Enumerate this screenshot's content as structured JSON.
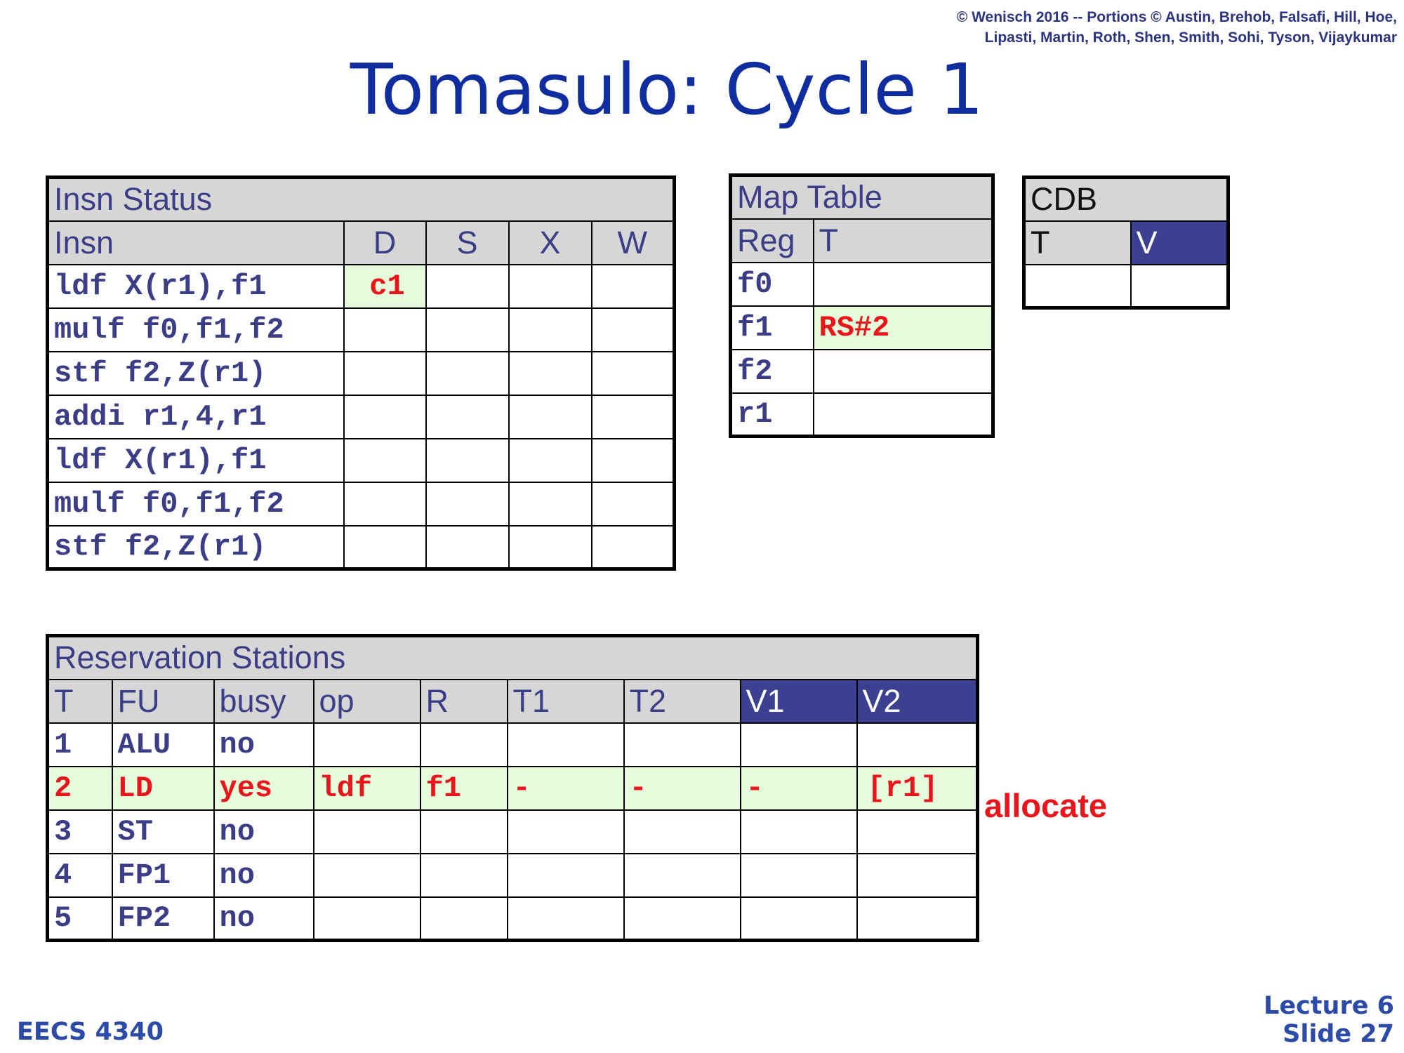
{
  "header": {
    "copyright_line1": "© Wenisch 2016 -- Portions © Austin, Brehob, Falsafi, Hill, Hoe,",
    "copyright_line2": "Lipasti, Martin, Roth, Shen, Smith, Sohi, Tyson, Vijaykumar",
    "title": "Tomasulo: Cycle 1"
  },
  "insn_status": {
    "title": "Insn Status",
    "columns": [
      "Insn",
      "D",
      "S",
      "X",
      "W"
    ],
    "rows": [
      {
        "insn": "ldf X(r1),f1",
        "d": "c1",
        "s": "",
        "x": "",
        "w": ""
      },
      {
        "insn": "mulf f0,f1,f2",
        "d": "",
        "s": "",
        "x": "",
        "w": ""
      },
      {
        "insn": "stf f2,Z(r1)",
        "d": "",
        "s": "",
        "x": "",
        "w": ""
      },
      {
        "insn": "addi r1,4,r1",
        "d": "",
        "s": "",
        "x": "",
        "w": ""
      },
      {
        "insn": "ldf X(r1),f1",
        "d": "",
        "s": "",
        "x": "",
        "w": ""
      },
      {
        "insn": "mulf f0,f1,f2",
        "d": "",
        "s": "",
        "x": "",
        "w": ""
      },
      {
        "insn": "stf f2,Z(r1)",
        "d": "",
        "s": "",
        "x": "",
        "w": ""
      }
    ]
  },
  "map_table": {
    "title": "Map Table",
    "columns": [
      "Reg",
      "T"
    ],
    "rows": [
      {
        "reg": "f0",
        "t": ""
      },
      {
        "reg": "f1",
        "t": "RS#2"
      },
      {
        "reg": "f2",
        "t": ""
      },
      {
        "reg": "r1",
        "t": ""
      }
    ]
  },
  "cdb": {
    "title": "CDB",
    "columns": [
      "T",
      "V"
    ],
    "row": {
      "t": "",
      "v": ""
    }
  },
  "reservation_stations": {
    "title": "Reservation Stations",
    "columns": [
      "T",
      "FU",
      "busy",
      "op",
      "R",
      "T1",
      "T2",
      "V1",
      "V2"
    ],
    "rows": [
      {
        "t": "1",
        "fu": "ALU",
        "busy": "no",
        "op": "",
        "r": "",
        "t1": "",
        "t2": "",
        "v1": "",
        "v2": ""
      },
      {
        "t": "2",
        "fu": "LD",
        "busy": "yes",
        "op": "ldf",
        "r": "f1",
        "t1": "-",
        "t2": "-",
        "v1": "-",
        "v2": "[r1]"
      },
      {
        "t": "3",
        "fu": "ST",
        "busy": "no",
        "op": "",
        "r": "",
        "t1": "",
        "t2": "",
        "v1": "",
        "v2": ""
      },
      {
        "t": "4",
        "fu": "FP1",
        "busy": "no",
        "op": "",
        "r": "",
        "t1": "",
        "t2": "",
        "v1": "",
        "v2": ""
      },
      {
        "t": "5",
        "fu": "FP2",
        "busy": "no",
        "op": "",
        "r": "",
        "t1": "",
        "t2": "",
        "v1": "",
        "v2": ""
      }
    ]
  },
  "annotation": "allocate",
  "footer": {
    "course": "EECS 4340",
    "lecture": "Lecture 6",
    "slide": "Slide 27"
  },
  "colors": {
    "title_blue": "#0f2d9e",
    "header_gray": "#d6d6d6",
    "header_dark": "#3b4190",
    "text_navy": "#3b3d87",
    "highlight_green": "#e6fadc",
    "alert_red": "#e8151a"
  }
}
